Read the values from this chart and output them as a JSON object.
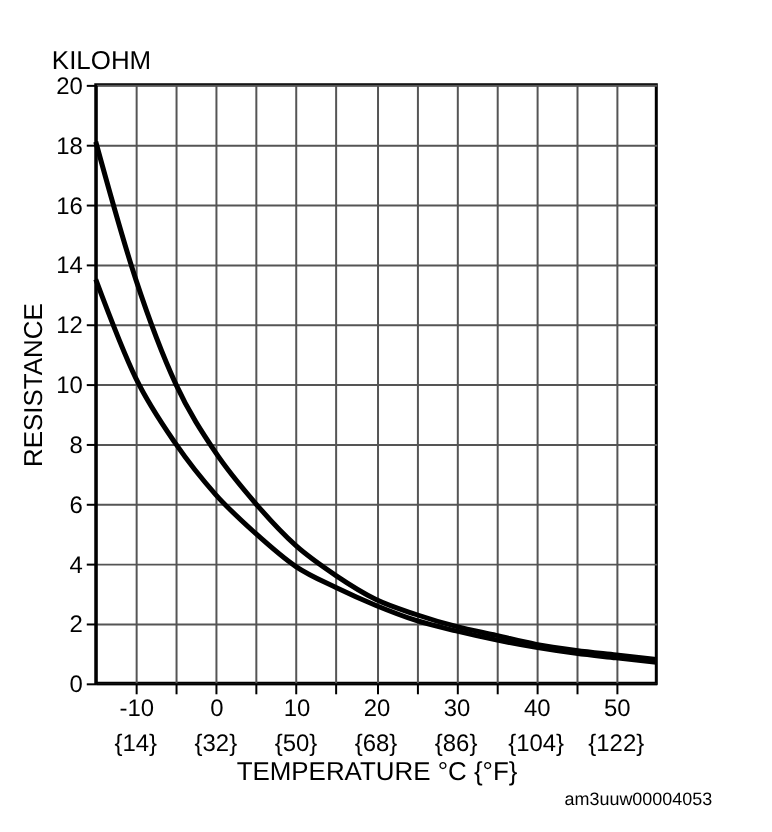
{
  "chart_data": {
    "type": "line",
    "xlabel": "TEMPERATURE   °C {°F}",
    "ylabel": "RESISTANCE",
    "annotations": [
      "KILOHM",
      "am3uuw00004053",
      "{14}",
      "{32}",
      "{50}",
      "{68}",
      "{86}",
      "{104}",
      "{122}"
    ],
    "xlim": [
      -15,
      55
    ],
    "ylim": [
      0,
      20
    ],
    "xticks": [
      -10,
      {
        "value": -5,
        "label": null
      },
      0,
      {
        "value": 5,
        "label": null
      },
      10,
      {
        "value": 15,
        "label": null
      },
      20,
      {
        "value": 25,
        "label": null
      },
      30,
      {
        "value": 35,
        "label": null
      },
      40,
      {
        "value": 45,
        "label": null
      },
      50
    ],
    "yticks": [
      0,
      2,
      4,
      6,
      8,
      10,
      12,
      14,
      16,
      18,
      20
    ],
    "grid": true,
    "marker": "none",
    "line_style": "solid",
    "series": [
      {
        "color": "#000000",
        "x": [
          -15,
          -10,
          -5,
          0,
          5,
          10,
          15,
          20,
          25,
          30,
          35,
          40,
          45,
          50,
          55
        ],
        "values": [
          18.1,
          13.5,
          10.0,
          7.7,
          6.0,
          4.6,
          3.6,
          2.8,
          2.3,
          1.9,
          1.6,
          1.3,
          1.1,
          0.95,
          0.8
        ]
      },
      {
        "color": "#000000",
        "x": [
          -15,
          -10,
          -5,
          0,
          5,
          10,
          15,
          20,
          25,
          30,
          35,
          40,
          45,
          50,
          55
        ],
        "values": [
          13.5,
          10.2,
          8.0,
          6.3,
          5.0,
          3.9,
          3.2,
          2.6,
          2.1,
          1.75,
          1.45,
          1.2,
          1.0,
          0.85,
          0.7
        ]
      }
    ]
  }
}
